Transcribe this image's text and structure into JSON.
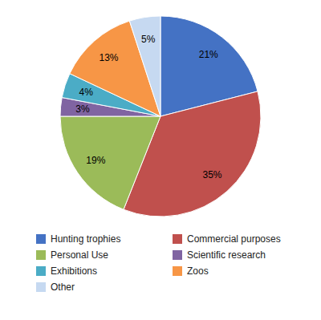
{
  "chart_data": {
    "type": "pie",
    "categories": [
      "Hunting trophies",
      "Commercial purposes",
      "Personal Use",
      "Scientific research",
      "Exhibitions",
      "Zoos",
      "Other"
    ],
    "values": [
      21,
      35,
      19,
      3,
      4,
      13,
      5
    ],
    "value_labels": [
      "21%",
      "35%",
      "19%",
      "3%",
      "4%",
      "13%",
      "5%"
    ],
    "colors": [
      "#4472C4",
      "#C0504D",
      "#9BBB59",
      "#8064A2",
      "#4BACC6",
      "#F79646",
      "#C6D9F1"
    ],
    "data_labels": true,
    "legend": "bottom"
  }
}
